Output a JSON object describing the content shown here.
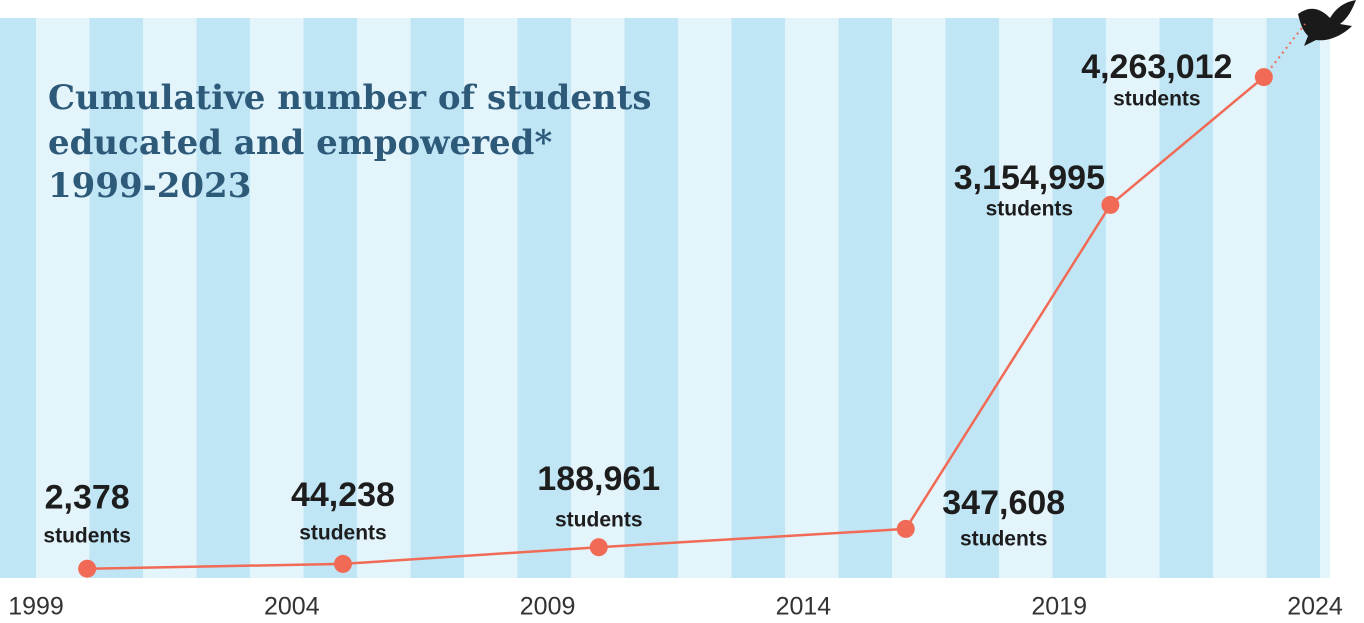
{
  "chart_data": {
    "type": "line",
    "title": [
      "Cumulative number of students",
      "educated and empowered*",
      "1999-2023"
    ],
    "x": [
      2000,
      2005,
      2010,
      2016,
      2020,
      2023
    ],
    "series": [
      {
        "name": "Students",
        "color": "#f06a55",
        "values": [
          2378,
          44238,
          188961,
          347608,
          3154995,
          4263012
        ],
        "value_labels": [
          "2,378",
          "44,238",
          "188,961",
          "347,608",
          "3,154,995",
          "4,263,012"
        ]
      }
    ],
    "unit_label": "students",
    "xlim": [
      1999,
      2024
    ],
    "xticks": [
      1999,
      2004,
      2009,
      2014,
      2019,
      2024
    ],
    "ylim": [
      0,
      4775000
    ]
  }
}
